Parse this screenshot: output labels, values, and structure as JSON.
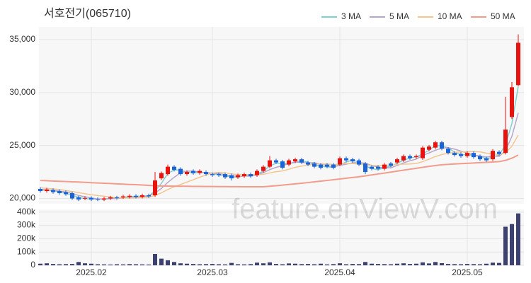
{
  "chart_data": {
    "type": "candlestick",
    "title": "서호전기(065710)",
    "watermark": "feature.enViewV.com",
    "up_color": "#e8120f",
    "down_color": "#1a64d6",
    "categories": [
      null,
      null,
      null,
      null,
      null,
      null,
      null,
      null,
      "2025.02",
      null,
      null,
      null,
      null,
      null,
      null,
      null,
      null,
      null,
      null,
      null,
      null,
      null,
      null,
      null,
      null,
      null,
      null,
      "2025.03",
      null,
      null,
      null,
      null,
      null,
      null,
      null,
      null,
      null,
      null,
      null,
      null,
      null,
      null,
      null,
      null,
      null,
      null,
      null,
      "2025.04",
      null,
      null,
      null,
      null,
      null,
      null,
      null,
      null,
      null,
      null,
      null,
      null,
      null,
      null,
      null,
      null,
      null,
      null,
      null,
      "2025.05",
      null,
      null,
      null,
      null,
      null,
      null,
      null,
      null
    ],
    "open": [
      20900,
      20700,
      20800,
      20700,
      20600,
      20500,
      20100,
      20000,
      20050,
      19950,
      19900,
      20000,
      20100,
      20100,
      20150,
      20250,
      20150,
      20300,
      20300,
      21900,
      22300,
      23000,
      22800,
      22300,
      22600,
      22400,
      22500,
      22300,
      22300,
      22300,
      22200,
      22000,
      22100,
      22300,
      22200,
      22600,
      23000,
      23600,
      23500,
      23200,
      23500,
      23700,
      23400,
      23300,
      23200,
      23200,
      23200,
      23200,
      23800,
      23700,
      23600,
      23300,
      23000,
      23000,
      22800,
      23300,
      23400,
      23600,
      24000,
      23900,
      23800,
      24600,
      24800,
      25300,
      24700,
      24300,
      24200,
      24000,
      24300,
      24000,
      23800,
      23700,
      24400,
      24300,
      27700,
      30700
    ],
    "high": [
      21050,
      21000,
      20950,
      20850,
      20750,
      20650,
      20250,
      20200,
      20200,
      20100,
      20150,
      20250,
      20250,
      20350,
      20400,
      20400,
      20450,
      20450,
      22500,
      22550,
      23200,
      23150,
      22950,
      22650,
      22750,
      22750,
      22650,
      22450,
      22450,
      22450,
      22350,
      22350,
      22450,
      22450,
      22750,
      23150,
      24000,
      23750,
      23650,
      23750,
      23850,
      23850,
      23550,
      23450,
      23350,
      23350,
      23350,
      23950,
      23950,
      23850,
      23750,
      23450,
      23150,
      23150,
      23350,
      23450,
      23850,
      24150,
      24150,
      24150,
      24950,
      25050,
      25450,
      25450,
      24850,
      24450,
      24350,
      24450,
      24450,
      24150,
      23950,
      24650,
      24550,
      29600,
      31000,
      35500
    ],
    "low": [
      20550,
      20550,
      20450,
      20350,
      20250,
      19850,
      19750,
      19850,
      19750,
      19750,
      19750,
      19850,
      19900,
      19950,
      20000,
      20000,
      20000,
      20050,
      20150,
      21750,
      22150,
      22550,
      22150,
      22150,
      22250,
      22250,
      22150,
      22050,
      22050,
      21850,
      21700,
      21850,
      21950,
      21950,
      22050,
      22450,
      22850,
      23250,
      22750,
      23050,
      23350,
      23250,
      23050,
      22850,
      22750,
      22850,
      22750,
      23050,
      23450,
      23350,
      23050,
      22300,
      22650,
      22650,
      22650,
      22950,
      23250,
      23450,
      23650,
      23750,
      23650,
      24450,
      24650,
      24550,
      24150,
      23950,
      23850,
      23850,
      23750,
      23550,
      23450,
      23550,
      24050,
      24150,
      27500,
      30600
    ],
    "close": [
      20700,
      20850,
      20600,
      20500,
      20400,
      20000,
      19900,
      20050,
      19900,
      19900,
      20000,
      20100,
      20050,
      20200,
      20250,
      20150,
      20300,
      20200,
      21700,
      22400,
      23000,
      22700,
      22300,
      22500,
      22400,
      22600,
      22300,
      22200,
      22200,
      22000,
      21900,
      22200,
      22300,
      22100,
      22600,
      23000,
      23600,
      23400,
      22900,
      23600,
      23700,
      23400,
      23200,
      23000,
      22900,
      23000,
      22900,
      23800,
      23600,
      23500,
      23200,
      22500,
      22800,
      22800,
      23200,
      23100,
      23700,
      24000,
      23800,
      24000,
      24800,
      24900,
      25300,
      24700,
      24300,
      24100,
      24000,
      24300,
      23900,
      23700,
      23600,
      24500,
      24200,
      26500,
      30500,
      34700
    ],
    "ylim": [
      19500,
      36200
    ],
    "yticks": [
      {
        "value": 20000,
        "label": "20,000"
      },
      {
        "value": 25000,
        "label": "25,000"
      },
      {
        "value": 30000,
        "label": "30,000"
      },
      {
        "value": 35000,
        "label": "35,000"
      }
    ],
    "grid": true,
    "legend": "top-right",
    "ma_series": [
      {
        "name": "3 MA",
        "color": "#7fd0d0",
        "values": [
          20800,
          20800,
          20700,
          20650,
          20500,
          20300,
          20100,
          19980,
          19950,
          19950,
          19930,
          20000,
          20050,
          20120,
          20170,
          20200,
          20230,
          20220,
          20730,
          21430,
          22370,
          22700,
          22670,
          22500,
          22400,
          22500,
          22430,
          22370,
          22230,
          22130,
          22030,
          22030,
          22130,
          22200,
          22330,
          22570,
          23070,
          23330,
          23300,
          23300,
          23400,
          23570,
          23430,
          23200,
          23030,
          22970,
          22930,
          23230,
          23430,
          23630,
          23430,
          23070,
          22830,
          22700,
          22930,
          23030,
          23330,
          23600,
          23830,
          23930,
          24200,
          24570,
          25000,
          24970,
          24770,
          24370,
          24130,
          24130,
          24070,
          23970,
          23730,
          23930,
          24100,
          25070,
          27070,
          30570
        ]
      },
      {
        "name": "5 MA",
        "color": "#b8a6ca",
        "values": [
          20850,
          20800,
          20750,
          20700,
          20610,
          20470,
          20280,
          20170,
          20050,
          19950,
          19950,
          19990,
          19990,
          20050,
          20120,
          20150,
          20190,
          20220,
          20520,
          20950,
          21520,
          22000,
          22420,
          22580,
          22580,
          22500,
          22420,
          22400,
          22340,
          22260,
          22120,
          22100,
          22120,
          22100,
          22220,
          22440,
          22720,
          22940,
          23100,
          23300,
          23440,
          23400,
          23360,
          23380,
          23240,
          23100,
          23000,
          23120,
          23240,
          23360,
          23400,
          23320,
          23120,
          22960,
          22900,
          22880,
          23120,
          23360,
          23560,
          23720,
          24060,
          24300,
          24560,
          24740,
          24800,
          24660,
          24480,
          24280,
          24120,
          24000,
          23900,
          24000,
          23980,
          24500,
          25860,
          28080
        ]
      },
      {
        "name": "10 MA",
        "color": "#f3c690",
        "values": [
          21000,
          20950,
          20900,
          20850,
          20750,
          20650,
          20550,
          20450,
          20350,
          20280,
          20210,
          20140,
          20080,
          20050,
          20040,
          20050,
          20090,
          20110,
          20290,
          20540,
          20840,
          21100,
          21320,
          21550,
          21770,
          22010,
          22210,
          22410,
          22460,
          22420,
          22310,
          22260,
          22260,
          22220,
          22240,
          22280,
          22410,
          22530,
          22600,
          22760,
          22940,
          23060,
          23150,
          23240,
          23270,
          23270,
          23200,
          23240,
          23310,
          23300,
          23250,
          23160,
          23120,
          23100,
          23130,
          23140,
          23220,
          23240,
          23260,
          23310,
          23470,
          23710,
          23960,
          24150,
          24260,
          24360,
          24390,
          24420,
          24430,
          24400,
          24280,
          24240,
          24130,
          24310,
          24930,
          25990
        ]
      },
      {
        "name": "50 MA",
        "color": "#f29c8b",
        "values": [
          21700,
          21680,
          21650,
          21620,
          21600,
          21570,
          21550,
          21520,
          21490,
          21460,
          21440,
          21410,
          21380,
          21350,
          21320,
          21300,
          21270,
          21240,
          21200,
          21180,
          21170,
          21160,
          21150,
          21150,
          21140,
          21140,
          21130,
          21130,
          21120,
          21120,
          21110,
          21110,
          21100,
          21100,
          21100,
          21100,
          21150,
          21200,
          21260,
          21320,
          21380,
          21440,
          21500,
          21570,
          21640,
          21700,
          21770,
          21840,
          21910,
          21980,
          22050,
          22130,
          22220,
          22310,
          22400,
          22490,
          22580,
          22670,
          22760,
          22850,
          22940,
          23030,
          23110,
          23180,
          23220,
          23260,
          23290,
          23320,
          23350,
          23380,
          23410,
          23440,
          23480,
          23600,
          23800,
          24100
        ]
      }
    ],
    "volume": {
      "color": "#3d4170",
      "values": [
        12000,
        15000,
        10000,
        8000,
        9000,
        10000,
        25000,
        15000,
        12000,
        8000,
        7000,
        6000,
        8000,
        7000,
        9000,
        8000,
        7000,
        6000,
        85000,
        50000,
        38000,
        25000,
        15000,
        12000,
        10000,
        8000,
        9000,
        10000,
        8000,
        7000,
        18000,
        8000,
        7000,
        9000,
        20000,
        15000,
        22000,
        10000,
        8000,
        14000,
        12000,
        9000,
        10000,
        8000,
        12000,
        7000,
        9000,
        15000,
        8000,
        10000,
        9000,
        25000,
        12000,
        10000,
        9000,
        8000,
        12000,
        15000,
        10000,
        12000,
        22000,
        14000,
        25000,
        16000,
        10000,
        9000,
        8000,
        10000,
        9000,
        8000,
        12000,
        20000,
        18000,
        290000,
        310000,
        390000
      ],
      "ylim": [
        0,
        420000
      ],
      "yticks": [
        0,
        {
          "value": 100000,
          "label": "100k"
        },
        {
          "value": 200000,
          "label": "200k"
        },
        {
          "value": 300000,
          "label": "300k"
        },
        {
          "value": 400000,
          "label": "400k"
        }
      ]
    }
  }
}
